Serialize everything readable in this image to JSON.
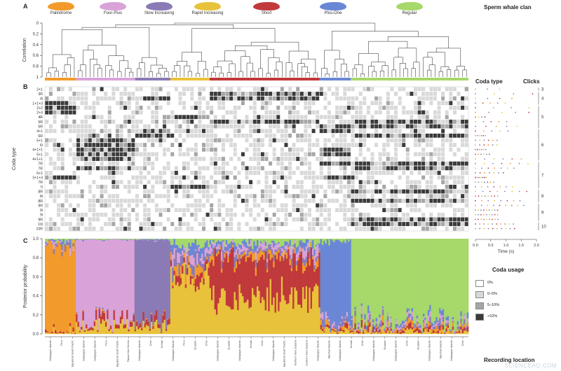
{
  "panels": {
    "A": {
      "letter": "A",
      "title": "Sperm whale clan",
      "ylabel": "Correlation",
      "yticks": [
        "0",
        "0.2",
        "0.4",
        "0.6",
        "0.8",
        "1"
      ]
    },
    "B": {
      "letter": "B",
      "ylabel": "Coda type",
      "coda_type_title": "Coda type",
      "clicks_title": "Clicks",
      "time_label": "Time (s)",
      "time_ticks": [
        "0.0",
        "0.5",
        "1.0",
        "1.5",
        "2.0"
      ]
    },
    "C": {
      "letter": "C",
      "ylabel": "Posterior probability",
      "yticks": [
        "0.0",
        "0.2",
        "0.4",
        "0.6",
        "0.8",
        "1.0"
      ],
      "xlabel": "Recording location"
    }
  },
  "clans": [
    {
      "name": "Palindrome",
      "color": "#f39a2c"
    },
    {
      "name": "Four-Plus",
      "color": "#d9a3d9"
    },
    {
      "name": "Slow Increasing",
      "color": "#8a7ab5"
    },
    {
      "name": "Rapid Increasing",
      "color": "#e8c23a"
    },
    {
      "name": "Short",
      "color": "#c0393b"
    },
    {
      "name": "Plus-One",
      "color": "#6a87d6"
    },
    {
      "name": "Regular",
      "color": "#a6d86a"
    }
  ],
  "coda_types": [
    "2+1",
    "3R",
    "4i",
    "1+1+3",
    "2+2",
    "2+3",
    "4R",
    "5R",
    "5R",
    "4+1",
    "6R",
    "5+1",
    "6i",
    "4+1+1",
    "5+1",
    "4+1+1",
    "7R",
    "7R",
    "6+1",
    "3+1+3",
    "7R",
    "7i",
    "8R",
    "8i",
    "8R",
    "9R",
    "9i",
    "9i",
    "9R",
    "10i",
    "10R"
  ],
  "clicks": [
    "3",
    "4",
    "5",
    "6",
    "7",
    "8",
    "9",
    "10"
  ],
  "usage_legend": {
    "title": "Coda usage",
    "items": [
      {
        "label": "0%",
        "color": "#ffffff"
      },
      {
        "label": "0–5%",
        "color": "#d9d9d9"
      },
      {
        "label": "5–10%",
        "color": "#a6a6a6"
      },
      {
        "label": ">10%",
        "color": "#3a3a3a"
      }
    ]
  },
  "chart_data": [
    {
      "type": "dendrogram",
      "title": "Sperm whale clan",
      "ylabel": "Correlation",
      "ylim": [
        0,
        1
      ],
      "clusters": [
        {
          "clan": "Palindrome",
          "leaves": 8,
          "color": "#f39a2c"
        },
        {
          "clan": "Four-Plus",
          "leaves": 15,
          "color": "#d9a3d9"
        },
        {
          "clan": "Slow Increasing",
          "leaves": 9,
          "color": "#8a7ab5"
        },
        {
          "clan": "Rapid Increasing",
          "leaves": 10,
          "color": "#e8c23a"
        },
        {
          "clan": "Short",
          "leaves": 28,
          "color": "#c0393b"
        },
        {
          "clan": "Plus-One",
          "leaves": 8,
          "color": "#6a87d6"
        },
        {
          "clan": "Regular",
          "leaves": 30,
          "color": "#a6d86a"
        }
      ]
    },
    {
      "type": "heatmap",
      "ylabel": "Coda type",
      "legend_title": "Coda usage",
      "levels": [
        "0%",
        "0–5%",
        "5–10%",
        ">10%"
      ]
    },
    {
      "type": "area",
      "ylabel": "Posterior probability",
      "ylim": [
        0,
        1
      ],
      "xlabel": "Recording location",
      "series": [
        {
          "name": "Palindrome",
          "dominant_in": "Palindrome"
        },
        {
          "name": "Four-Plus",
          "dominant_in": "Four-Plus"
        },
        {
          "name": "Slow Increasing",
          "dominant_in": "Slow Increasing"
        },
        {
          "name": "Rapid Increasing",
          "dominant_in": "Rapid Increasing"
        },
        {
          "name": "Short",
          "dominant_in": "Short"
        },
        {
          "name": "Plus-One",
          "dominant_in": "Plus-One"
        },
        {
          "name": "Regular",
          "dominant_in": "Regular"
        }
      ]
    }
  ],
  "location_labels": [
    "Galápagos Islands",
    "Peru",
    "Equatorial South Pacific",
    "Galápagos Islands",
    "Galápagos Islands",
    "Peru",
    "Equatorial South Pacific",
    "Papua New Guinea",
    "Galápagos Islands",
    "Chile",
    "Kiribati",
    "Galápagos Islands",
    "Peru",
    "Ecuador",
    "Chile",
    "Galápagos Islands",
    "Ecuador",
    "Galápagos Islands",
    "Kiribati",
    "Chile",
    "Galápagos Islands",
    "Equatorial South Pacific",
    "Northern New Zealand",
    "Southern New Zealand",
    "Galápagos Islands",
    "Marshall Islands",
    "Galápagos Islands",
    "Kiribati",
    "Chile",
    "Galápagos Islands",
    "Ecuador",
    "Galápagos Islands",
    "Chile",
    "Ecuador",
    "Galápagos Islands",
    "Marshall Islands",
    "Galápagos Islands",
    "Chile"
  ],
  "watermark": "SCIENCEAQ.COM"
}
